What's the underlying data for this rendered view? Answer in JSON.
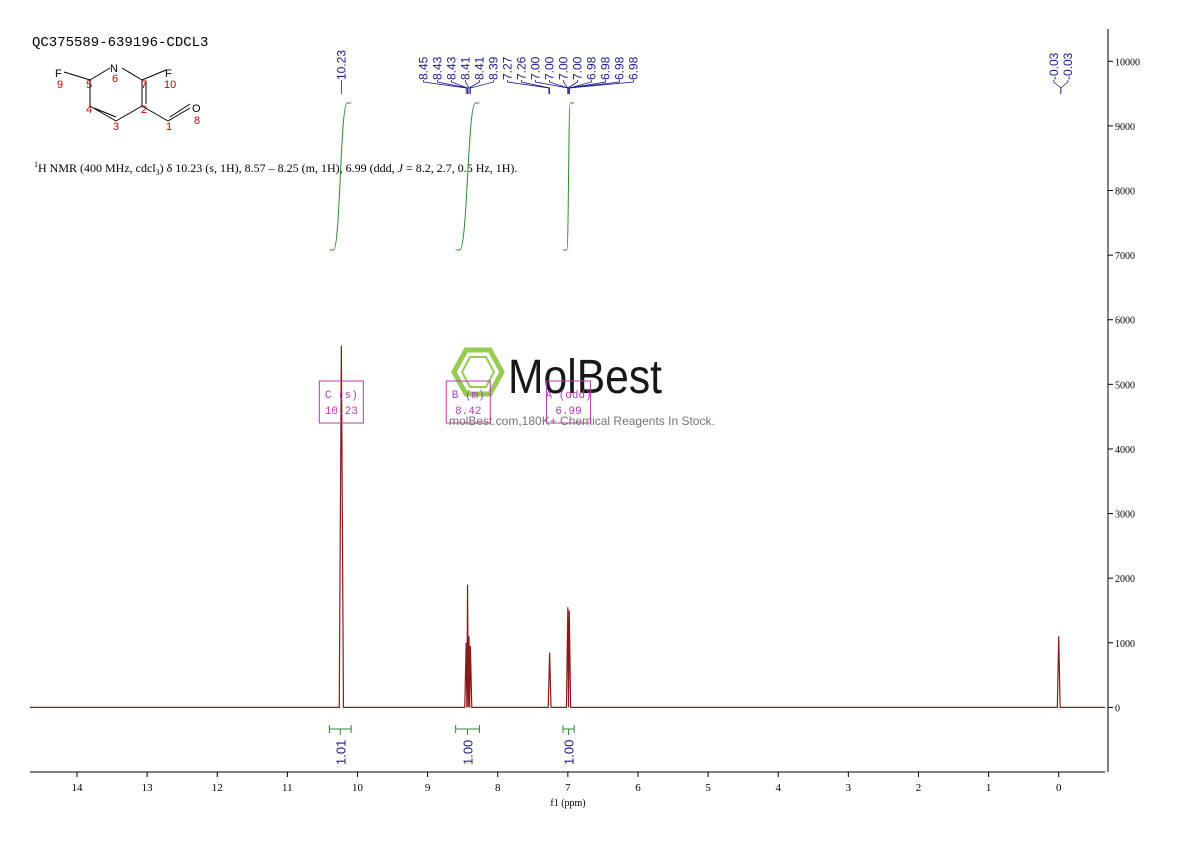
{
  "sample_title": "QC375589-639196-CDCL3",
  "structure": {
    "atoms": [
      "F",
      "N",
      "F",
      "O"
    ],
    "numbers": [
      "9",
      "5",
      "6",
      "7",
      "10",
      "4",
      "2",
      "3",
      "1",
      "8"
    ]
  },
  "nmr_text": [
    "1",
    "H NMR (400 MHz, cdcl",
    "3",
    ") δ 10.23 (s, 1H), 8.57 – 8.25 (m, 1H), 6.99 (ddd, ",
    "J",
    " = 8.2, 2.7, 0.5 Hz, 1H)."
  ],
  "watermark": {
    "brand": "MolBest",
    "tagline": "molBest.com,180K+ Chemical Reagents In Stock."
  },
  "chart_data": {
    "type": "line",
    "x_label": "f1 (ppm)",
    "color": "#8b1a1a",
    "xlim": [
      14.67,
      -0.66
    ],
    "xticks": [
      14,
      13,
      12,
      11,
      10,
      9,
      8,
      7,
      6,
      5,
      4,
      3,
      2,
      1,
      0
    ],
    "ylim": [
      -1000,
      10500
    ],
    "yticks": [
      0,
      1000,
      2000,
      3000,
      4000,
      5000,
      6000,
      7000,
      8000,
      9000,
      10000
    ],
    "x": [
      14.67,
      10.26,
      10.23,
      10.2,
      8.47,
      8.45,
      8.44,
      8.43,
      8.42,
      8.41,
      8.4,
      8.39,
      8.37,
      7.28,
      7.26,
      7.24,
      7.02,
      7.0,
      6.99,
      6.98,
      6.96,
      0.02,
      0,
      -0.02,
      -0.66
    ],
    "values": [
      0,
      0,
      5600,
      0,
      0,
      1000,
      0,
      1900,
      0,
      1100,
      0,
      950,
      0,
      0,
      850,
      0,
      0,
      1550,
      0,
      1500,
      0,
      0,
      1100,
      0,
      0
    ],
    "peaks": [
      10.23,
      8.45,
      8.43,
      8.43,
      8.41,
      8.41,
      8.39,
      7.27,
      7.26,
      {
        "value": 7.0,
        "label": "7.00"
      },
      {
        "value": 7.0,
        "label": "7.00"
      },
      {
        "value": 7.0,
        "label": "7.00"
      },
      {
        "value": 7.0,
        "label": "7.00"
      },
      6.98,
      6.98,
      6.98,
      6.98,
      -0.03,
      -0.03
    ],
    "integrals": [
      {
        "from": 10.4,
        "to": 10.09,
        "value": 1.01
      },
      {
        "from": 8.6,
        "to": 8.26,
        "value": {
          "value": 1,
          "label": "1.00"
        }
      },
      {
        "from": 7.07,
        "to": 6.91,
        "value": {
          "value": 1,
          "label": "1.00"
        }
      }
    ],
    "multiplets": [
      {
        "name": "C (s)",
        "shift": 10.23
      },
      {
        "name": "B (m)",
        "shift": 8.42
      },
      {
        "name": "A (ddd)",
        "shift": 6.99
      }
    ]
  }
}
